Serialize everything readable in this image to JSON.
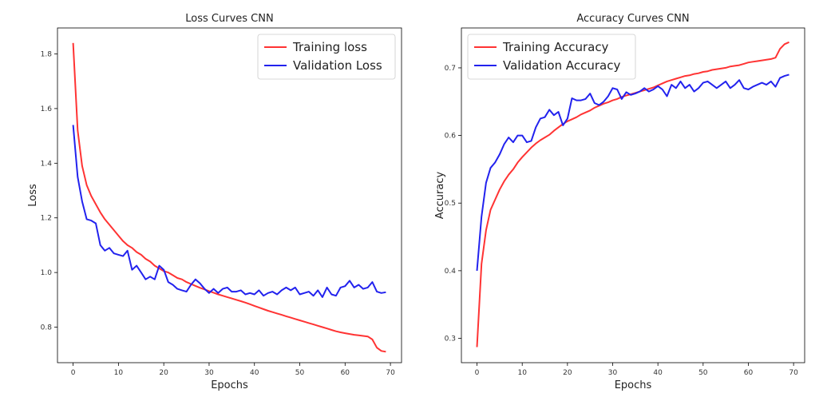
{
  "chart_data": [
    {
      "type": "line",
      "title": "Loss Curves CNN",
      "xlabel": "Epochs",
      "ylabel": "Loss",
      "xlim": [
        -3.45,
        72.45
      ],
      "ylim": [
        0.67,
        1.895
      ],
      "xticks": [
        0,
        10,
        20,
        30,
        40,
        50,
        60,
        70
      ],
      "yticks": [
        0.8,
        1.0,
        1.2,
        1.4,
        1.6,
        1.8
      ],
      "xtick_labels": [
        "0",
        "10",
        "20",
        "30",
        "40",
        "50",
        "60",
        "70"
      ],
      "ytick_labels": [
        "0.8",
        "1.0",
        "1.2",
        "1.4",
        "1.6",
        "1.8"
      ],
      "grid": false,
      "legend": "top-right",
      "series": [
        {
          "name": "Training loss",
          "color": "#ff3333",
          "x": [
            0,
            1,
            2,
            3,
            4,
            5,
            6,
            7,
            8,
            9,
            10,
            11,
            12,
            13,
            14,
            15,
            16,
            17,
            18,
            19,
            20,
            21,
            22,
            23,
            24,
            25,
            26,
            27,
            28,
            29,
            30,
            31,
            32,
            33,
            34,
            35,
            36,
            37,
            38,
            39,
            40,
            41,
            42,
            43,
            44,
            45,
            46,
            47,
            48,
            49,
            50,
            51,
            52,
            53,
            54,
            55,
            56,
            57,
            58,
            59,
            60,
            61,
            62,
            63,
            64,
            65,
            66,
            67,
            68,
            69
          ],
          "values": [
            1.84,
            1.52,
            1.39,
            1.32,
            1.28,
            1.25,
            1.22,
            1.195,
            1.175,
            1.155,
            1.135,
            1.115,
            1.1,
            1.09,
            1.075,
            1.065,
            1.05,
            1.04,
            1.025,
            1.015,
            1.005,
            1.0,
            0.99,
            0.98,
            0.975,
            0.965,
            0.958,
            0.951,
            0.944,
            0.938,
            0.932,
            0.926,
            0.92,
            0.915,
            0.91,
            0.905,
            0.9,
            0.895,
            0.89,
            0.884,
            0.878,
            0.872,
            0.866,
            0.86,
            0.855,
            0.85,
            0.845,
            0.84,
            0.835,
            0.83,
            0.825,
            0.82,
            0.815,
            0.81,
            0.805,
            0.8,
            0.795,
            0.79,
            0.785,
            0.781,
            0.778,
            0.775,
            0.772,
            0.77,
            0.768,
            0.766,
            0.755,
            0.725,
            0.713,
            0.71
          ]
        },
        {
          "name": "Validation Loss",
          "color": "#2222ee",
          "x": [
            0,
            1,
            2,
            3,
            4,
            5,
            6,
            7,
            8,
            9,
            10,
            11,
            12,
            13,
            14,
            15,
            16,
            17,
            18,
            19,
            20,
            21,
            22,
            23,
            24,
            25,
            26,
            27,
            28,
            29,
            30,
            31,
            32,
            33,
            34,
            35,
            36,
            37,
            38,
            39,
            40,
            41,
            42,
            43,
            44,
            45,
            46,
            47,
            48,
            49,
            50,
            51,
            52,
            53,
            54,
            55,
            56,
            57,
            58,
            59,
            60,
            61,
            62,
            63,
            64,
            65,
            66,
            67,
            68,
            69
          ],
          "values": [
            1.54,
            1.35,
            1.26,
            1.195,
            1.19,
            1.18,
            1.1,
            1.08,
            1.09,
            1.07,
            1.065,
            1.06,
            1.08,
            1.01,
            1.025,
            1.0,
            0.975,
            0.985,
            0.975,
            1.025,
            1.01,
            0.965,
            0.955,
            0.94,
            0.935,
            0.93,
            0.955,
            0.975,
            0.96,
            0.94,
            0.925,
            0.94,
            0.925,
            0.94,
            0.945,
            0.93,
            0.93,
            0.935,
            0.92,
            0.925,
            0.92,
            0.935,
            0.915,
            0.925,
            0.93,
            0.92,
            0.935,
            0.945,
            0.935,
            0.945,
            0.92,
            0.925,
            0.93,
            0.915,
            0.935,
            0.91,
            0.945,
            0.92,
            0.915,
            0.945,
            0.95,
            0.97,
            0.945,
            0.955,
            0.94,
            0.945,
            0.965,
            0.93,
            0.925,
            0.928
          ]
        }
      ]
    },
    {
      "type": "line",
      "title": "Accuracy Curves CNN",
      "xlabel": "Epochs",
      "ylabel": "Accuracy",
      "xlim": [
        -3.45,
        72.45
      ],
      "ylim": [
        0.264,
        0.759
      ],
      "xticks": [
        0,
        10,
        20,
        30,
        40,
        50,
        60,
        70
      ],
      "yticks": [
        0.3,
        0.4,
        0.5,
        0.6,
        0.7
      ],
      "xtick_labels": [
        "0",
        "10",
        "20",
        "30",
        "40",
        "50",
        "60",
        "70"
      ],
      "ytick_labels": [
        "0.3",
        "0.4",
        "0.5",
        "0.6",
        "0.7"
      ],
      "grid": false,
      "legend": "top-left",
      "series": [
        {
          "name": "Training Accuracy",
          "color": "#ff3333",
          "x": [
            0,
            1,
            2,
            3,
            4,
            5,
            6,
            7,
            8,
            9,
            10,
            11,
            12,
            13,
            14,
            15,
            16,
            17,
            18,
            19,
            20,
            21,
            22,
            23,
            24,
            25,
            26,
            27,
            28,
            29,
            30,
            31,
            32,
            33,
            34,
            35,
            36,
            37,
            38,
            39,
            40,
            41,
            42,
            43,
            44,
            45,
            46,
            47,
            48,
            49,
            50,
            51,
            52,
            53,
            54,
            55,
            56,
            57,
            58,
            59,
            60,
            61,
            62,
            63,
            64,
            65,
            66,
            67,
            68,
            69
          ],
          "values": [
            0.287,
            0.41,
            0.46,
            0.49,
            0.505,
            0.52,
            0.532,
            0.542,
            0.55,
            0.56,
            0.568,
            0.575,
            0.582,
            0.588,
            0.593,
            0.597,
            0.601,
            0.607,
            0.612,
            0.617,
            0.621,
            0.624,
            0.627,
            0.631,
            0.634,
            0.637,
            0.641,
            0.644,
            0.647,
            0.649,
            0.652,
            0.654,
            0.657,
            0.659,
            0.661,
            0.663,
            0.665,
            0.667,
            0.669,
            0.671,
            0.674,
            0.677,
            0.68,
            0.682,
            0.684,
            0.686,
            0.688,
            0.689,
            0.691,
            0.692,
            0.694,
            0.695,
            0.697,
            0.698,
            0.699,
            0.7,
            0.702,
            0.703,
            0.704,
            0.706,
            0.708,
            0.709,
            0.71,
            0.711,
            0.712,
            0.713,
            0.715,
            0.728,
            0.735,
            0.738
          ]
        },
        {
          "name": "Validation Accuracy",
          "color": "#2222ee",
          "x": [
            0,
            1,
            2,
            3,
            4,
            5,
            6,
            7,
            8,
            9,
            10,
            11,
            12,
            13,
            14,
            15,
            16,
            17,
            18,
            19,
            20,
            21,
            22,
            23,
            24,
            25,
            26,
            27,
            28,
            29,
            30,
            31,
            32,
            33,
            34,
            35,
            36,
            37,
            38,
            39,
            40,
            41,
            42,
            43,
            44,
            45,
            46,
            47,
            48,
            49,
            50,
            51,
            52,
            53,
            54,
            55,
            56,
            57,
            58,
            59,
            60,
            61,
            62,
            63,
            64,
            65,
            66,
            67,
            68,
            69
          ],
          "values": [
            0.4,
            0.48,
            0.53,
            0.552,
            0.56,
            0.572,
            0.587,
            0.597,
            0.59,
            0.6,
            0.6,
            0.59,
            0.592,
            0.612,
            0.625,
            0.627,
            0.638,
            0.63,
            0.635,
            0.615,
            0.625,
            0.655,
            0.652,
            0.652,
            0.654,
            0.662,
            0.648,
            0.645,
            0.65,
            0.658,
            0.67,
            0.668,
            0.654,
            0.664,
            0.66,
            0.662,
            0.665,
            0.67,
            0.665,
            0.668,
            0.673,
            0.668,
            0.658,
            0.675,
            0.67,
            0.68,
            0.67,
            0.675,
            0.665,
            0.67,
            0.678,
            0.68,
            0.675,
            0.67,
            0.675,
            0.68,
            0.67,
            0.675,
            0.682,
            0.67,
            0.668,
            0.672,
            0.675,
            0.678,
            0.675,
            0.68,
            0.672,
            0.685,
            0.688,
            0.69
          ]
        }
      ]
    }
  ]
}
